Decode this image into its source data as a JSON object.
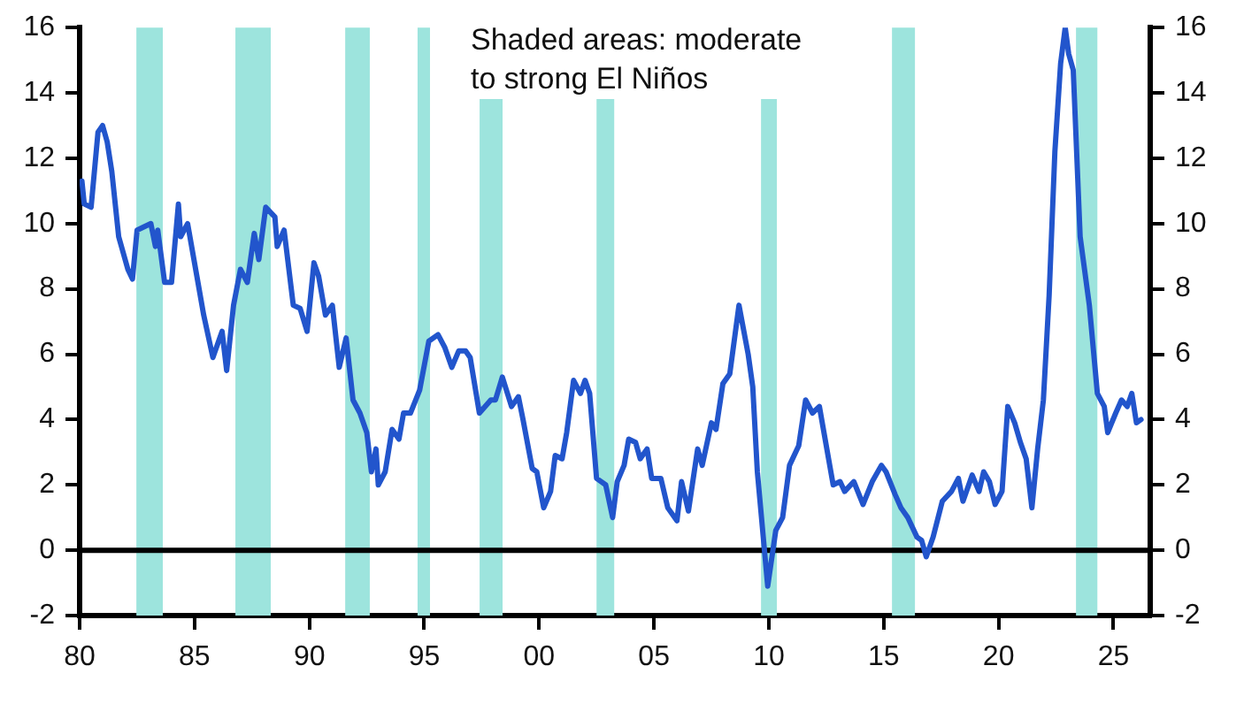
{
  "chart_data": {
    "type": "line",
    "annotations": [
      "Shaded areas: moderate\nto strong El Niños"
    ],
    "xlim": [
      1980,
      2026.6
    ],
    "xticks": [
      {
        "value": 1980,
        "label": "80"
      },
      {
        "value": 1985,
        "label": "85"
      },
      {
        "value": 1990,
        "label": "90"
      },
      {
        "value": 1995,
        "label": "95"
      },
      {
        "value": 2000,
        "label": "00"
      },
      {
        "value": 2005,
        "label": "05"
      },
      {
        "value": 2010,
        "label": "10"
      },
      {
        "value": 2015,
        "label": "15"
      },
      {
        "value": 2020,
        "label": "20"
      },
      {
        "value": 2025,
        "label": "25"
      }
    ],
    "ylim": [
      -2,
      16
    ],
    "yticks": [
      -2,
      0,
      2,
      4,
      6,
      8,
      10,
      12,
      14,
      16
    ],
    "y2lim": [
      -2,
      16
    ],
    "y2ticks": [
      -2,
      0,
      2,
      4,
      6,
      8,
      10,
      12,
      14,
      16
    ],
    "grid": false,
    "marker": "none",
    "line_style": "solid",
    "ref_lines": [
      {
        "axis": "y",
        "value": 0,
        "color": "#000000"
      }
    ],
    "bands": [
      {
        "axis": "x",
        "from": 1982.47,
        "to": 1983.62,
        "color": "#9de4dd"
      },
      {
        "axis": "x",
        "from": 1986.78,
        "to": 1988.32,
        "color": "#9de4dd"
      },
      {
        "axis": "x",
        "from": 1991.56,
        "to": 1992.63,
        "color": "#9de4dd"
      },
      {
        "axis": "x",
        "from": 1994.71,
        "to": 1995.25,
        "color": "#9de4dd"
      },
      {
        "axis": "x",
        "from": 1997.41,
        "to": 1998.41,
        "color": "#9de4dd"
      },
      {
        "axis": "x",
        "from": 2002.5,
        "to": 2003.27,
        "color": "#9de4dd"
      },
      {
        "axis": "x",
        "from": 2009.66,
        "to": 2010.35,
        "color": "#9de4dd"
      },
      {
        "axis": "x",
        "from": 2015.36,
        "to": 2016.36,
        "color": "#9de4dd"
      },
      {
        "axis": "x",
        "from": 2023.37,
        "to": 2024.3,
        "color": "#9de4dd"
      }
    ],
    "series": [
      {
        "color": "#2255cc",
        "x": [
          1980.1,
          1980.2,
          1980.5,
          1980.8,
          1981.0,
          1981.2,
          1981.4,
          1981.7,
          1982.1,
          1982.3,
          1982.5,
          1983.1,
          1983.3,
          1983.4,
          1983.7,
          1984.0,
          1984.3,
          1984.4,
          1984.7,
          1985.1,
          1985.4,
          1985.8,
          1986.2,
          1986.4,
          1986.7,
          1987.0,
          1987.3,
          1987.6,
          1987.8,
          1988.1,
          1988.5,
          1988.6,
          1988.9,
          1989.3,
          1989.6,
          1989.9,
          1990.2,
          1990.4,
          1990.7,
          1991.0,
          1991.3,
          1991.6,
          1991.9,
          1992.2,
          1992.5,
          1992.7,
          1992.9,
          1993.0,
          1993.3,
          1993.6,
          1993.9,
          1994.1,
          1994.4,
          1994.8,
          1995.2,
          1995.6,
          1995.9,
          1996.2,
          1996.5,
          1996.8,
          1997.0,
          1997.4,
          1997.9,
          1998.1,
          1998.4,
          1998.8,
          1999.1,
          1999.3,
          1999.7,
          1999.9,
          2000.2,
          2000.5,
          2000.7,
          2001.0,
          2001.2,
          2001.5,
          2001.8,
          2002.0,
          2002.2,
          2002.5,
          2002.9,
          2003.2,
          2003.4,
          2003.7,
          2003.9,
          2004.2,
          2004.4,
          2004.7,
          2004.9,
          2005.3,
          2005.6,
          2006.0,
          2006.2,
          2006.5,
          2006.9,
          2007.1,
          2007.5,
          2007.7,
          2008.0,
          2008.3,
          2008.7,
          2009.1,
          2009.3,
          2009.5,
          2009.95,
          2010.3,
          2010.6,
          2010.9,
          2011.3,
          2011.6,
          2011.9,
          2012.2,
          2012.6,
          2012.8,
          2013.1,
          2013.3,
          2013.7,
          2014.1,
          2014.5,
          2014.9,
          2015.1,
          2015.5,
          2015.75,
          2016.05,
          2016.45,
          2016.65,
          2016.85,
          2017.15,
          2017.55,
          2017.95,
          2018.25,
          2018.45,
          2018.85,
          2019.15,
          2019.35,
          2019.6,
          2019.85,
          2020.15,
          2020.4,
          2020.7,
          2020.95,
          2021.2,
          2021.45,
          2021.7,
          2021.95,
          2022.2,
          2022.45,
          2022.7,
          2022.9,
          2023.05,
          2023.25,
          2023.55,
          2023.95,
          2024.3,
          2024.6,
          2024.75,
          2025.1,
          2025.35,
          2025.6,
          2025.8,
          2026.0,
          2026.2
        ],
        "values": [
          11.3,
          10.6,
          10.5,
          12.8,
          13.0,
          12.5,
          11.6,
          9.6,
          8.6,
          8.3,
          9.8,
          10.0,
          9.3,
          9.8,
          8.2,
          8.2,
          10.6,
          9.6,
          10.0,
          8.4,
          7.2,
          5.9,
          6.7,
          5.5,
          7.5,
          8.6,
          8.2,
          9.7,
          8.9,
          10.5,
          10.2,
          9.3,
          9.8,
          7.5,
          7.4,
          6.7,
          8.8,
          8.4,
          7.2,
          7.5,
          5.6,
          6.5,
          4.6,
          4.2,
          3.6,
          2.4,
          3.1,
          2.0,
          2.4,
          3.7,
          3.4,
          4.2,
          4.2,
          4.9,
          6.4,
          6.6,
          6.2,
          5.6,
          6.1,
          6.1,
          5.9,
          4.2,
          4.6,
          4.6,
          5.3,
          4.4,
          4.7,
          4.0,
          2.5,
          2.4,
          1.3,
          1.8,
          2.9,
          2.8,
          3.6,
          5.2,
          4.8,
          5.2,
          4.8,
          2.2,
          2.0,
          1.0,
          2.1,
          2.6,
          3.4,
          3.3,
          2.8,
          3.1,
          2.2,
          2.2,
          1.3,
          0.9,
          2.1,
          1.2,
          3.1,
          2.6,
          3.9,
          3.7,
          5.1,
          5.4,
          7.5,
          6.0,
          5.0,
          2.4,
          -1.1,
          0.6,
          1.0,
          2.6,
          3.2,
          4.6,
          4.2,
          4.4,
          2.8,
          2.0,
          2.1,
          1.8,
          2.1,
          1.4,
          2.1,
          2.6,
          2.4,
          1.7,
          1.3,
          1.0,
          0.4,
          0.3,
          -0.2,
          0.4,
          1.5,
          1.8,
          2.2,
          1.5,
          2.3,
          1.8,
          2.4,
          2.1,
          1.4,
          1.8,
          4.4,
          3.9,
          3.3,
          2.8,
          1.3,
          3.1,
          4.6,
          7.8,
          12.2,
          14.9,
          16.0,
          15.2,
          14.7,
          9.6,
          7.5,
          4.8,
          4.4,
          3.6,
          4.2,
          4.6,
          4.4,
          4.8,
          3.9,
          4.0
        ]
      }
    ]
  }
}
